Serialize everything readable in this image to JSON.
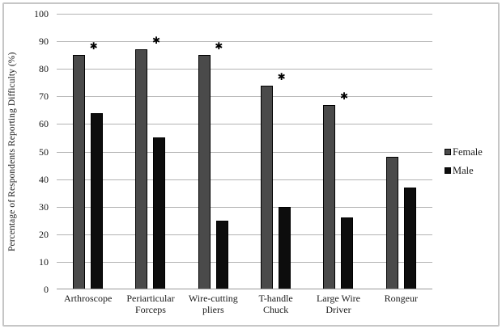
{
  "figure": {
    "background": "#ffffff",
    "frame_color": "#c6c6c6",
    "gridline_color": "#b3b3b3",
    "axis_line_color": "#9a9a9a",
    "text_color": "#1a1a1a"
  },
  "chart_data": {
    "type": "bar",
    "title": "",
    "xlabel": "",
    "ylabel": "Percentage of Respondents Reporting Difficulty (%)",
    "ylim": [
      0,
      100
    ],
    "yticks": [
      0,
      10,
      20,
      30,
      40,
      50,
      60,
      70,
      80,
      90,
      100
    ],
    "grid": true,
    "legend_position": "right",
    "categories": [
      "Arthroscope",
      "Periarticular\nForceps",
      "Wire-cutting\npliers",
      "T-handle\nChuck",
      "Large Wire\nDriver",
      "Rongeur"
    ],
    "series": [
      {
        "name": "Female",
        "color": "#4a4a4a",
        "border_color": "#000000",
        "values": [
          85,
          87,
          85,
          74,
          67,
          48
        ]
      },
      {
        "name": "Male",
        "color": "#0d0d0d",
        "border_color": "#000000",
        "values": [
          64,
          55,
          25,
          30,
          26,
          37
        ]
      }
    ],
    "significance_marker": "✱",
    "significant_categories": [
      true,
      true,
      true,
      true,
      true,
      false
    ]
  }
}
